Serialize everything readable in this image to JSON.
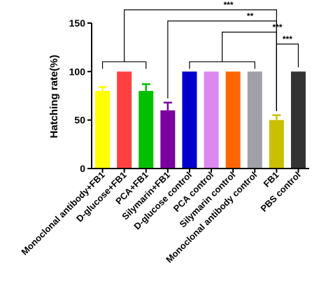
{
  "chart_data": {
    "type": "bar",
    "title": "",
    "xlabel": "",
    "ylabel": "Hatching rate(%)",
    "ylim": [
      0,
      150
    ],
    "yticks": [
      0,
      50,
      100,
      150
    ],
    "grid": false,
    "categories": [
      "Monoclonal antibody+FB1",
      "D-glucose+FB1",
      "PCA+FB1",
      "Silymarin+FB1",
      "D-glucose control",
      "PCA control",
      "Silymarin control",
      "Monoclonal antibody control",
      "FB1",
      "PBS control"
    ],
    "values": [
      80,
      100,
      80,
      60,
      100,
      100,
      100,
      100,
      50,
      100
    ],
    "errors": [
      4,
      0,
      7,
      8,
      0,
      0,
      0,
      0,
      5,
      0
    ],
    "colors": [
      "#ffff00",
      "#ff4040",
      "#00c000",
      "#7a00a0",
      "#0000cc",
      "#dd88f0",
      "#ff6600",
      "#a0a0a8",
      "#c8c000",
      "#333333"
    ],
    "significance": [
      {
        "from_group": [
          0,
          2
        ],
        "to": 8,
        "label": "***",
        "level": 0
      },
      {
        "from": 3,
        "to": 8,
        "label": "**",
        "level": 1
      },
      {
        "from_group": [
          4,
          7
        ],
        "to": 8,
        "label": "***",
        "level": 2
      },
      {
        "from": 8,
        "to": 9,
        "label": "***",
        "level": 3
      }
    ]
  }
}
